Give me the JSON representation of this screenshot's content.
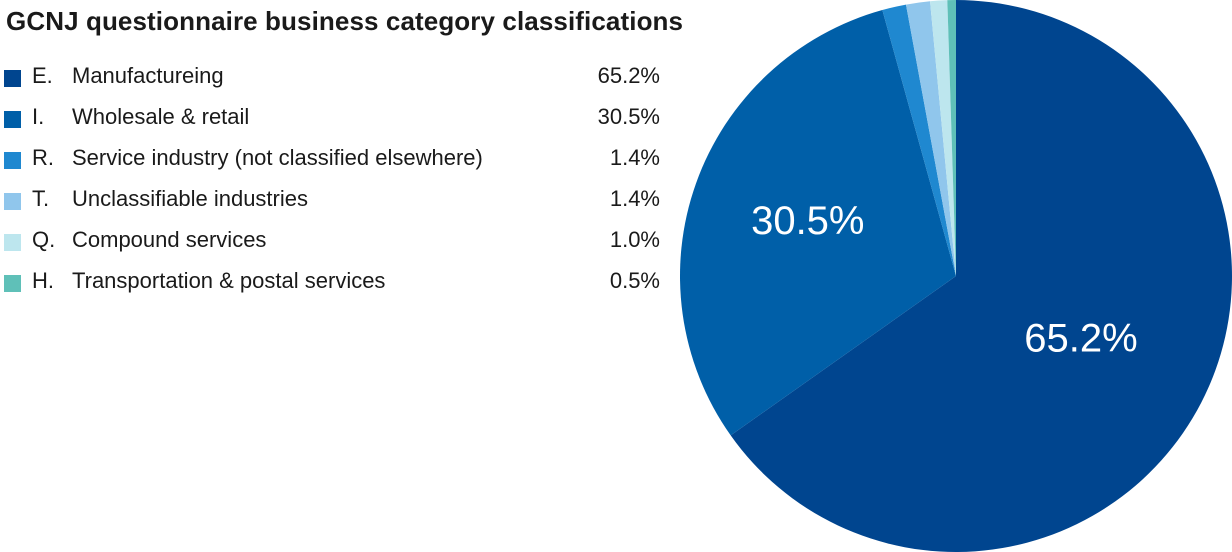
{
  "chart_data": {
    "type": "pie",
    "title": "GCNJ questionnaire business category classifications",
    "slices": [
      {
        "code": "E.",
        "label": "Manufactureing",
        "value": 65.2,
        "display": "65.2%",
        "color": "#00458f"
      },
      {
        "code": "I.",
        "label": "Wholesale & retail",
        "value": 30.5,
        "display": "30.5%",
        "color": "#005fa8"
      },
      {
        "code": "R.",
        "label": "Service industry (not classified elsewhere)",
        "value": 1.4,
        "display": "1.4%",
        "color": "#1f88d0"
      },
      {
        "code": "T.",
        "label": "Unclassifiable industries",
        "value": 1.4,
        "display": "1.4%",
        "color": "#90c6ec"
      },
      {
        "code": "Q.",
        "label": "Compound services",
        "value": 1.0,
        "display": "1.0%",
        "color": "#bde6ee"
      },
      {
        "code": "H.",
        "label": "Transportation & postal services",
        "value": 0.5,
        "display": "0.5%",
        "color": "#5fc0b8"
      }
    ],
    "data_labels": [
      "65.2%",
      "30.5%"
    ],
    "legend_position": "left"
  }
}
